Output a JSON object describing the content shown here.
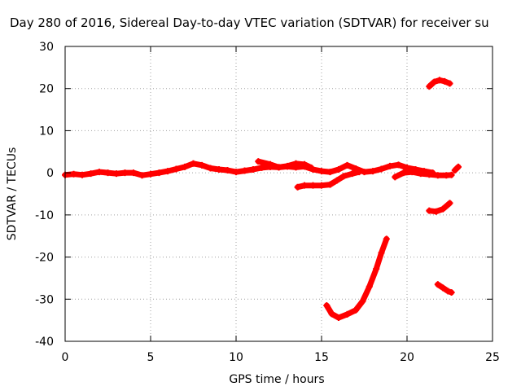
{
  "chart_data": {
    "type": "scatter",
    "title": "Day 280 of 2016, Sidereal Day-to-day VTEC variation (SDTVAR) for receiver su",
    "xlabel": "GPS time / hours",
    "ylabel": "SDTVAR / TECUs",
    "xlim": [
      0,
      25
    ],
    "ylim": [
      -40,
      30
    ],
    "xticks": [
      0,
      5,
      10,
      15,
      20,
      25
    ],
    "yticks": [
      30,
      20,
      10,
      0,
      -10,
      -20,
      -30,
      -40
    ],
    "grid": true,
    "color": "#ff0000",
    "series": [
      {
        "x": [
          0,
          0.5,
          1,
          1.5,
          2,
          2.5,
          3,
          3.5,
          4,
          4.5,
          5,
          5.5,
          6,
          6.5,
          7,
          7.5,
          8,
          8.5,
          9,
          9.5,
          10,
          10.5,
          11,
          11.5,
          12,
          12.5,
          13,
          13.5,
          14,
          14.5,
          15,
          15.5,
          16,
          16.5,
          17,
          17.5,
          18,
          18.5,
          19,
          19.5,
          20,
          20.5,
          21,
          21.5
        ],
        "y": [
          -0.5,
          -0.3,
          -0.5,
          -0.2,
          0.2,
          0,
          -0.2,
          0,
          0,
          -0.6,
          -0.3,
          0,
          0.4,
          0.9,
          1.4,
          2.2,
          1.8,
          1.1,
          0.8,
          0.6,
          0.2,
          0.5,
          0.8,
          1.2,
          1.4,
          1.3,
          1.5,
          1.3,
          1.5,
          0.8,
          0.4,
          0.2,
          0.8,
          1.8,
          1.0,
          0.2,
          0.4,
          0.9,
          1.6,
          1.9,
          1.2,
          0.8,
          0.4,
          0
        ]
      },
      {
        "x": [
          11.3,
          12,
          12.5,
          13,
          13.5,
          14,
          14.4
        ],
        "y": [
          2.7,
          2.0,
          1.3,
          1.6,
          2.2,
          2.0,
          1.2
        ]
      },
      {
        "x": [
          13.6,
          14,
          14.5,
          15,
          15.5,
          15.9,
          16.3,
          16.8,
          17.2
        ],
        "y": [
          -3.4,
          -3.0,
          -3.0,
          -3.0,
          -2.8,
          -1.8,
          -0.8,
          -0.2,
          0.2
        ]
      },
      {
        "x": [
          19.3,
          19.8,
          20.3,
          20.8,
          21.3,
          21.8,
          22.3,
          22.6
        ],
        "y": [
          -1.0,
          0,
          0.2,
          -0.2,
          -0.4,
          -0.6,
          -0.6,
          -0.5
        ]
      },
      {
        "x": [
          22.8,
          23.0
        ],
        "y": [
          0.6,
          1.4
        ]
      },
      {
        "x": [
          21.3,
          21.6,
          21.9,
          22.2,
          22.5
        ],
        "y": [
          20.5,
          21.6,
          22.0,
          21.7,
          21.2
        ]
      },
      {
        "x": [
          21.3,
          21.7,
          22.1,
          22.5
        ],
        "y": [
          -9.0,
          -9.2,
          -8.6,
          -7.2
        ]
      },
      {
        "x": [
          15.3,
          15.6,
          16.0,
          16.5,
          17.0,
          17.4,
          17.8,
          18.2,
          18.5,
          18.8
        ],
        "y": [
          -31.5,
          -33.5,
          -34.4,
          -33.6,
          -32.6,
          -30.5,
          -27.0,
          -22.8,
          -19.0,
          -15.7
        ]
      },
      {
        "x": [
          21.8,
          22.1,
          22.4,
          22.6
        ],
        "y": [
          -26.5,
          -27.3,
          -28.1,
          -28.4
        ]
      }
    ]
  }
}
